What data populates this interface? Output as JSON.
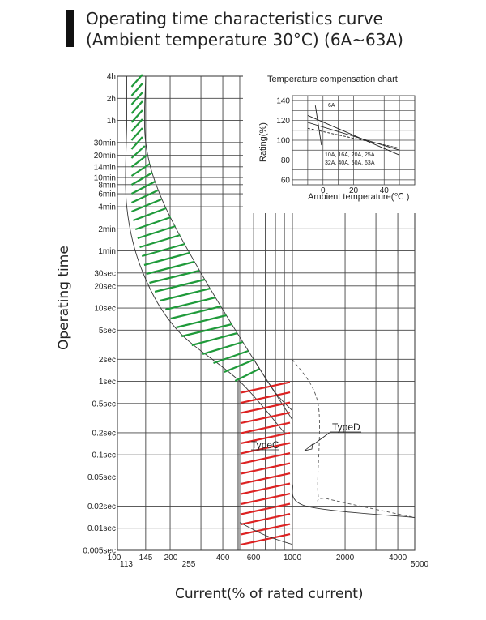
{
  "header": {
    "title_line1": "Operating time characteristics curve",
    "title_line2": "(Ambient temperature 30°C) (6A~63A)"
  },
  "chart_data": [
    {
      "type": "line",
      "title": "Operating time characteristics curve (Ambient temperature 30°C) (6A~63A)",
      "xlabel": "Current(% of rated current)",
      "ylabel": "Operating time",
      "x_scale": "log",
      "y_scale": "log",
      "xlim": [
        100,
        5000
      ],
      "ylim_seconds": [
        0.005,
        14400
      ],
      "x_ticks": [
        {
          "value": 100,
          "label": "100"
        },
        {
          "value": 113,
          "label": "113"
        },
        {
          "value": 145,
          "label": "145"
        },
        {
          "value": 200,
          "label": "200"
        },
        {
          "value": 255,
          "label": "255"
        },
        {
          "value": 400,
          "label": "400"
        },
        {
          "value": 600,
          "label": "600"
        },
        {
          "value": 1000,
          "label": "1000"
        },
        {
          "value": 2000,
          "label": "2000"
        },
        {
          "value": 4000,
          "label": "4000"
        },
        {
          "value": 5000,
          "label": "5000"
        }
      ],
      "y_ticks": [
        {
          "value": 14400,
          "label": "4h"
        },
        {
          "value": 7200,
          "label": "2h"
        },
        {
          "value": 3600,
          "label": "1h"
        },
        {
          "value": 1800,
          "label": "30min"
        },
        {
          "value": 1200,
          "label": "20min"
        },
        {
          "value": 840,
          "label": "14min"
        },
        {
          "value": 600,
          "label": "10min"
        },
        {
          "value": 480,
          "label": "8min"
        },
        {
          "value": 360,
          "label": "6min"
        },
        {
          "value": 240,
          "label": "4min"
        },
        {
          "value": 120,
          "label": "2min"
        },
        {
          "value": 60,
          "label": "1min"
        },
        {
          "value": 30,
          "label": "30sec"
        },
        {
          "value": 20,
          "label": "20sec"
        },
        {
          "value": 10,
          "label": "10sec"
        },
        {
          "value": 5,
          "label": "5sec"
        },
        {
          "value": 2,
          "label": "2sec"
        },
        {
          "value": 1,
          "label": "1sec"
        },
        {
          "value": 0.5,
          "label": "0.5sec"
        },
        {
          "value": 0.2,
          "label": "0.2sec"
        },
        {
          "value": 0.1,
          "label": "0.1sec"
        },
        {
          "value": 0.05,
          "label": "0.05sec"
        },
        {
          "value": 0.02,
          "label": "0.02sec"
        },
        {
          "value": 0.01,
          "label": "0.01sec"
        },
        {
          "value": 0.005,
          "label": "0.005sec"
        }
      ],
      "series": [
        {
          "name": "TypeC",
          "color": "#dd2222",
          "band_left": [
            [
              500,
              1
            ],
            [
              500,
              0.005
            ]
          ],
          "band_right": [
            [
              1000,
              2
            ],
            [
              1000,
              0.005
            ]
          ]
        },
        {
          "name": "TypeD",
          "color": "#555555",
          "curve": [
            [
              1000,
              2
            ],
            [
              1400,
              0.5
            ],
            [
              1400,
              0.03
            ],
            [
              1600,
              0.025
            ],
            [
              5000,
              0.014
            ]
          ]
        },
        {
          "name": "thermal band",
          "color": "#1f9a3a",
          "lower": [
            [
              145,
              14400
            ],
            [
              145,
              1800
            ],
            [
              180,
              300
            ],
            [
              300,
              30
            ],
            [
              600,
              2
            ],
            [
              1000,
              0.3
            ]
          ],
          "upper": [
            [
              113,
              14400
            ],
            [
              113,
              3600
            ],
            [
              113,
              240
            ],
            [
              140,
              30
            ],
            [
              220,
              5
            ],
            [
              500,
              1
            ],
            [
              900,
              0.2
            ]
          ]
        },
        {
          "name": "instantaneous tail",
          "color": "#333333",
          "curve": [
            [
              1000,
              0.04
            ],
            [
              1200,
              0.02
            ],
            [
              5000,
              0.014
            ]
          ]
        }
      ],
      "annotations": [
        "TypeC",
        "TypeD"
      ]
    },
    {
      "type": "line",
      "title": "Temperature compensation chart",
      "xlabel": "Ambient temperature(℃ )",
      "ylabel": "Rating(%)",
      "xlim": [
        -20,
        60
      ],
      "ylim": [
        55,
        145
      ],
      "x_ticks": [
        0,
        20,
        40
      ],
      "y_ticks": [
        60,
        80,
        100,
        120,
        140
      ],
      "series": [
        {
          "name": "6A",
          "x": [
            -10,
            50
          ],
          "y": [
            125,
            85
          ]
        },
        {
          "name": "10A, 16A, 20A, 25A",
          "x": [
            -10,
            50
          ],
          "y": [
            118,
            90
          ]
        },
        {
          "name": "32A, 40A, 50A, 63A",
          "x": [
            -10,
            50
          ],
          "y": [
            112,
            92
          ]
        }
      ],
      "annotations": [
        "6A",
        "10A, 16A, 20A, 25A",
        "32A, 40A, 50A, 63A"
      ]
    }
  ],
  "labels": {
    "x_axis_title": "Current(% of rated current)",
    "y_axis_title": "Operating time",
    "type_c": "TypeC",
    "type_d": "TypeD",
    "inset_title": "Temperature compensation chart",
    "inset_ylabel": "Rating(%)",
    "inset_xlabel": "Ambient temperature(℃ )",
    "inset_6a": "6A",
    "inset_group1": "10A, 16A, 20A, 25A",
    "inset_group2": "32A, 40A, 50A, 63A"
  },
  "colors": {
    "grid": "#444444",
    "green_hatch": "#1f9a3a",
    "red_hatch": "#dd2222",
    "curve": "#333333"
  }
}
